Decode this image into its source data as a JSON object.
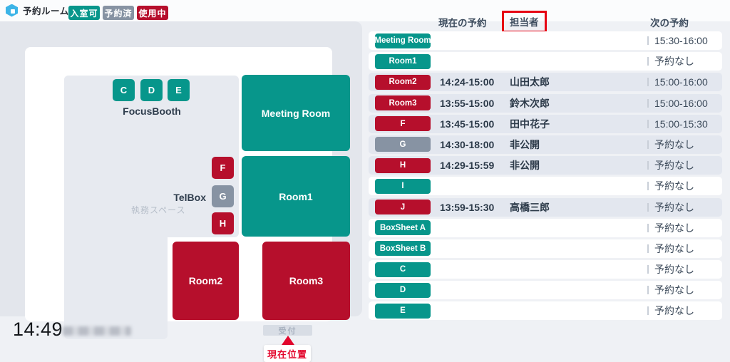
{
  "app": {
    "logo_text": "予約ルームズ"
  },
  "legend": [
    {
      "label": "入室可",
      "status": "available"
    },
    {
      "label": "予約済",
      "status": "reserved"
    },
    {
      "label": "使用中",
      "status": "in-use"
    }
  ],
  "map": {
    "labels": {
      "focus_booth": "FocusBooth",
      "telbox": "TelBox",
      "office_space": "執務スペース",
      "reception": "受付",
      "current_location": "現在位置"
    },
    "rooms": [
      {
        "id": "meeting-room",
        "label": "Meeting Room",
        "status": "available"
      },
      {
        "id": "room1",
        "label": "Room1",
        "status": "available"
      },
      {
        "id": "room2",
        "label": "Room2",
        "status": "in-use"
      },
      {
        "id": "room3",
        "label": "Room3",
        "status": "in-use"
      }
    ],
    "booths": [
      {
        "id": "C",
        "label": "C",
        "status": "available"
      },
      {
        "id": "D",
        "label": "D",
        "status": "available"
      },
      {
        "id": "E",
        "label": "E",
        "status": "available"
      },
      {
        "id": "F",
        "label": "F",
        "status": "in-use"
      },
      {
        "id": "G",
        "label": "G",
        "status": "reserved"
      },
      {
        "id": "H",
        "label": "H",
        "status": "in-use"
      }
    ]
  },
  "table": {
    "headers": {
      "current": "現在の予約",
      "owner": "担当者",
      "next": "次の予約"
    },
    "rows": [
      {
        "room": "Meeting Room",
        "status": "available",
        "current": "",
        "owner": "",
        "next": "15:30-16:00"
      },
      {
        "room": "Room1",
        "status": "available",
        "current": "",
        "owner": "",
        "next": "予約なし"
      },
      {
        "room": "Room2",
        "status": "in-use",
        "current": "14:24-15:00",
        "owner": "山田太郎",
        "next": "15:00-16:00"
      },
      {
        "room": "Room3",
        "status": "in-use",
        "current": "13:55-15:00",
        "owner": "鈴木次郎",
        "next": "15:00-16:00"
      },
      {
        "room": "F",
        "status": "in-use",
        "current": "13:45-15:00",
        "owner": "田中花子",
        "next": "15:00-15:30"
      },
      {
        "room": "G",
        "status": "reserved",
        "current": "14:30-18:00",
        "owner": "非公開",
        "next": "予約なし"
      },
      {
        "room": "H",
        "status": "in-use",
        "current": "14:29-15:59",
        "owner": "非公開",
        "next": "予約なし"
      },
      {
        "room": "I",
        "status": "available",
        "current": "",
        "owner": "",
        "next": "予約なし"
      },
      {
        "room": "J",
        "status": "in-use",
        "current": "13:59-15:30",
        "owner": "高橋三郎",
        "next": "予約なし"
      },
      {
        "room": "BoxSheet A",
        "status": "available",
        "current": "",
        "owner": "",
        "next": "予約なし"
      },
      {
        "room": "BoxSheet B",
        "status": "available",
        "current": "",
        "owner": "",
        "next": "予約なし"
      },
      {
        "room": "C",
        "status": "available",
        "current": "",
        "owner": "",
        "next": "予約なし"
      },
      {
        "room": "D",
        "status": "available",
        "current": "",
        "owner": "",
        "next": "予約なし"
      },
      {
        "room": "E",
        "status": "available",
        "current": "",
        "owner": "",
        "next": "予約なし"
      }
    ]
  },
  "footer": {
    "time": "14:49"
  },
  "colors": {
    "teal": "#07968b",
    "red": "#b60f2c",
    "slate": "#8793a3",
    "highlight": "#e60012",
    "location": "#e3062c"
  }
}
